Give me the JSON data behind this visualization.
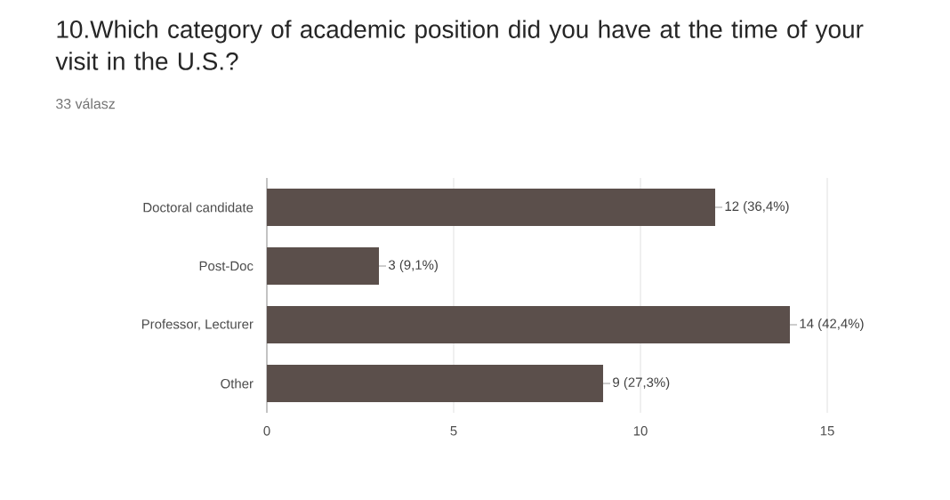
{
  "chart_data": {
    "type": "bar",
    "orientation": "horizontal",
    "title": "10.Which category of academic position did you have at the time of your visit in the U.S.?",
    "subtitle": "33 válasz",
    "categories": [
      "Doctoral candidate",
      "Post-Doc",
      "Professor, Lecturer",
      "Other"
    ],
    "values": [
      12,
      3,
      14,
      9
    ],
    "value_labels": [
      "12 (36,4%)",
      "3 (9,1%)",
      "14 (42,4%)",
      "9 (27,3%)"
    ],
    "color": "#5b4f4b",
    "xlim": [
      0,
      15
    ],
    "xticks": [
      0,
      5,
      10,
      15
    ],
    "grid": "x"
  }
}
